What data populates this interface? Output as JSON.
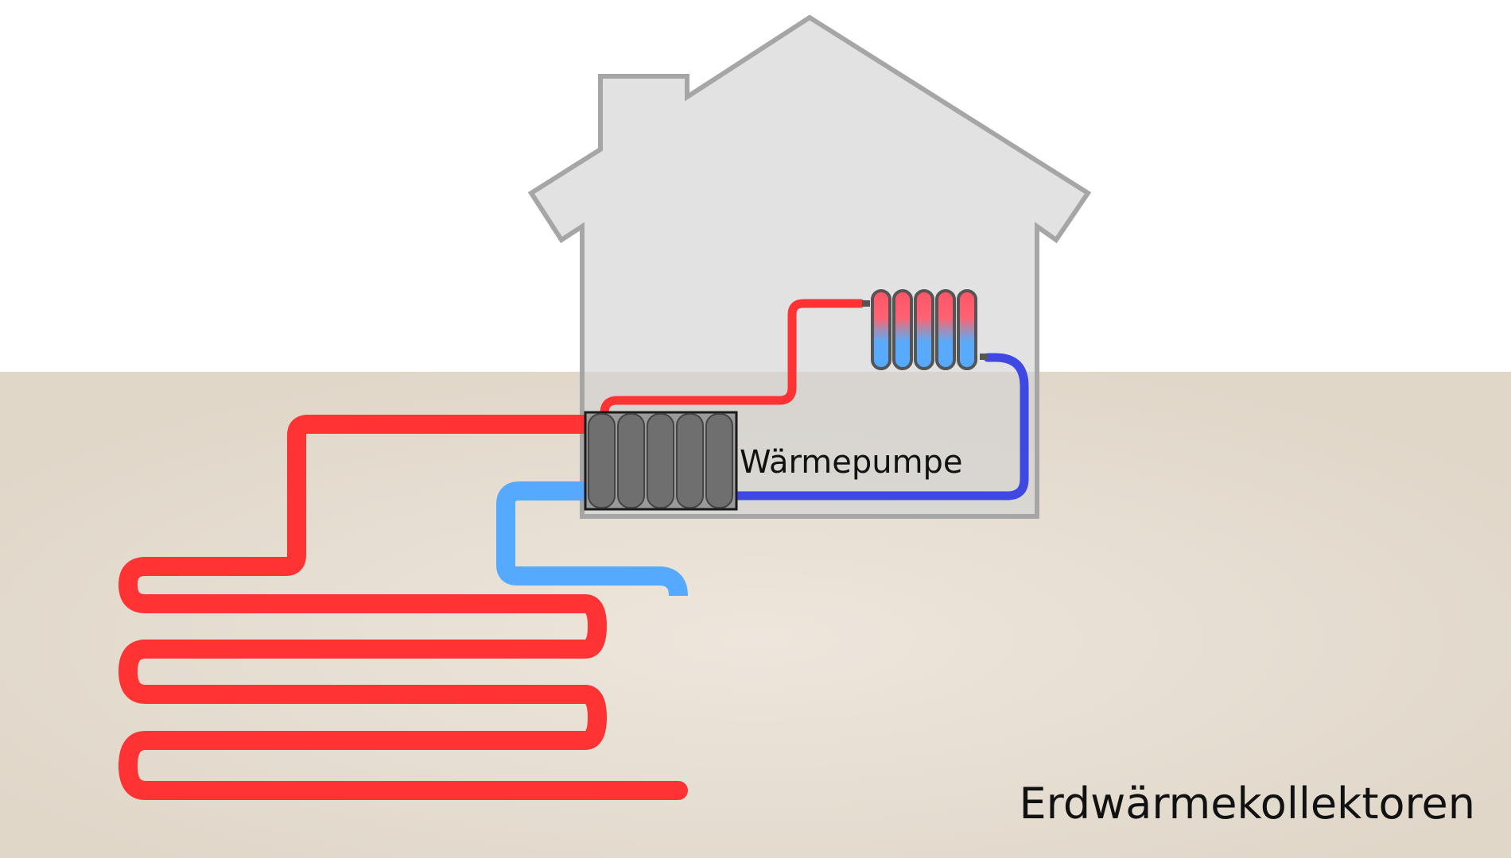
{
  "labels": {
    "heat_pump": "Wärmepumpe",
    "ground_collectors": "Erdwärmekollektoren"
  },
  "colors": {
    "sky": "#ffffff",
    "ground": "#e2d9cb",
    "house_fill": "#d2d2d2",
    "house_outline": "#a6a6a6",
    "hot_pipe": "#ff3333",
    "cold_pipe": "#55aaff",
    "return_pipe": "#3f48e0",
    "heat_pump_body": "#6f6f6f",
    "heat_pump_frame": "#1a1a1a",
    "radiator_hot": "#ff5566",
    "radiator_cold": "#55aaff",
    "label_text": "#111111"
  },
  "icons": {
    "house": "house-icon",
    "heat_pump": "heat-pump-icon",
    "radiator": "radiator-icon"
  }
}
